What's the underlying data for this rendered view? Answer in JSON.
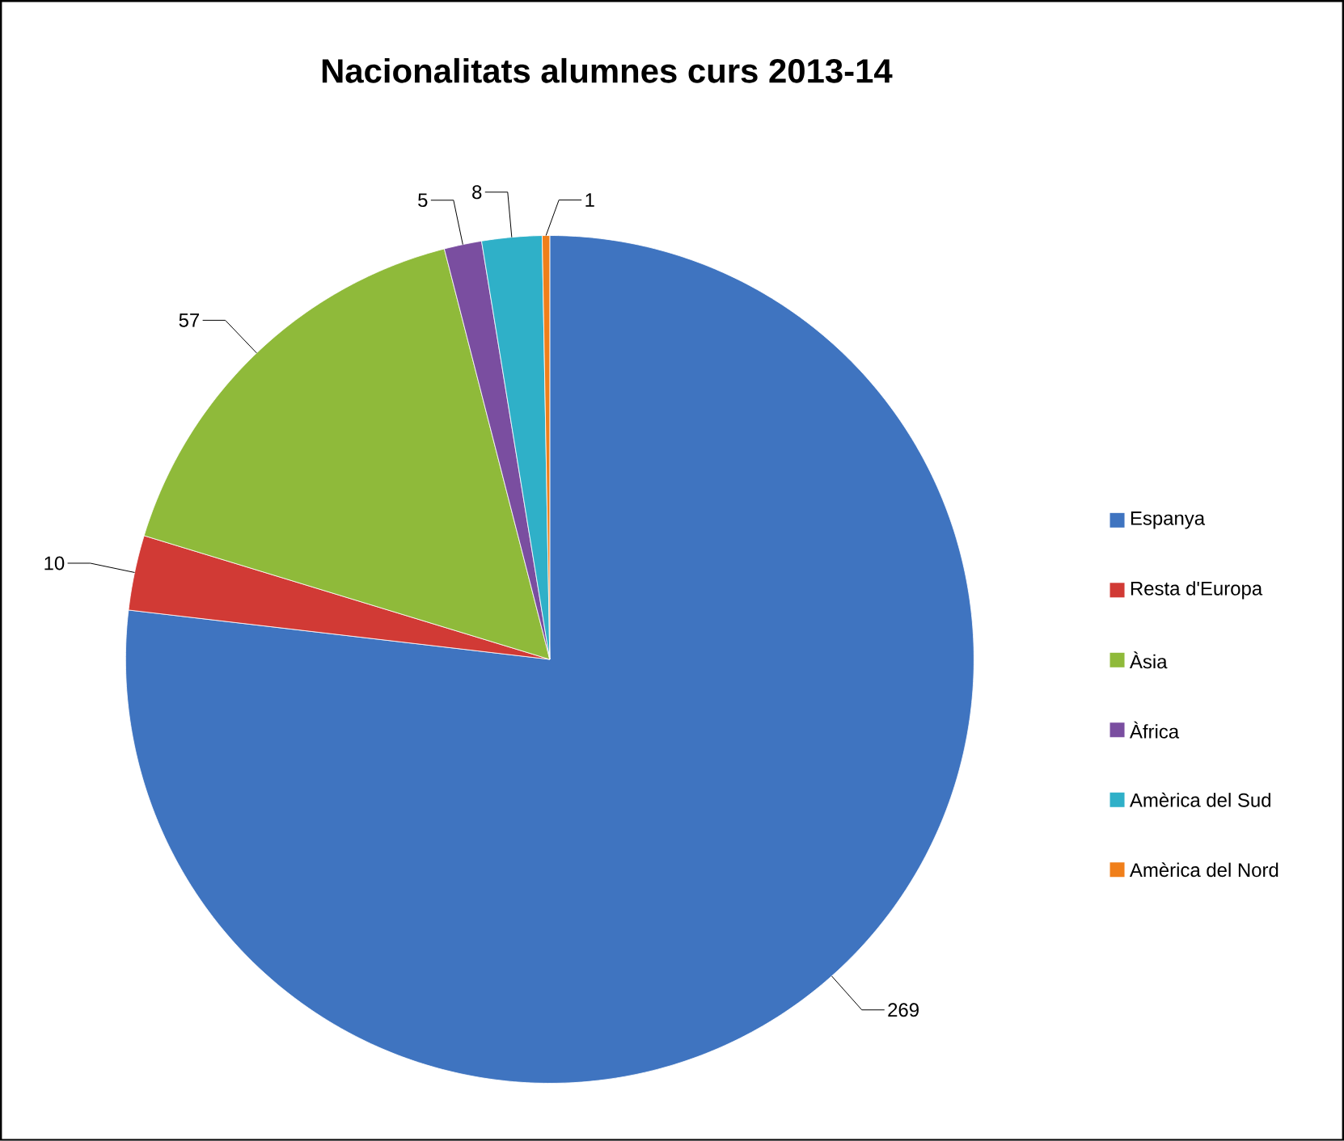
{
  "chart_data": {
    "type": "pie",
    "title": "Nacionalitats alumnes curs 2013-14",
    "categories": [
      "Espanya",
      "Resta d'Europa",
      "Àsia",
      "Àfrica",
      "Amèrica del Sud",
      "Amèrica del Nord"
    ],
    "values": [
      269,
      10,
      57,
      5,
      8,
      1
    ],
    "colors": [
      "#3f74c0",
      "#d13a35",
      "#8fba3a",
      "#7a4ea0",
      "#2fb0c8",
      "#f07f1a"
    ],
    "data_labels": true,
    "legend": "right"
  }
}
